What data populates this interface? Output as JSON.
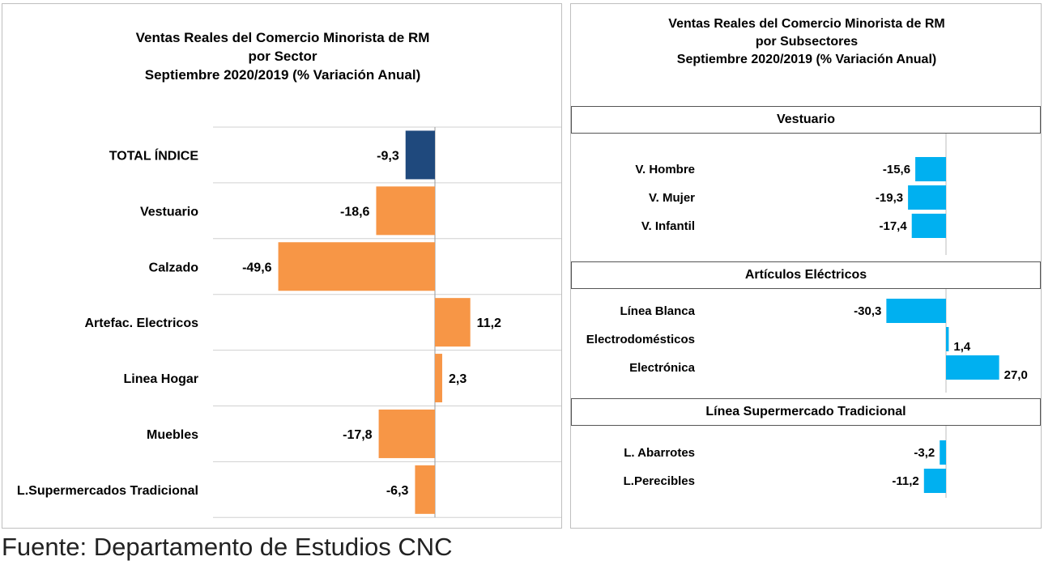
{
  "left_chart": {
    "title_lines": [
      "Ventas Reales del Comercio Minorista de RM",
      "por Sector",
      "Septiembre 2020/2019 (% Variación Anual)"
    ]
  },
  "right_chart": {
    "title_lines": [
      "Ventas Reales del Comercio Minorista de RM",
      "por Subsectores",
      "Septiembre 2020/2019 (% Variación Anual)"
    ]
  },
  "footer": "Fuente: Departamento de Estudios CNC",
  "colors": {
    "total": "#1f497d",
    "sector": "#f79646",
    "subsector": "#00b0f0"
  },
  "chart_data": [
    {
      "type": "bar",
      "orientation": "horizontal",
      "title": "Ventas Reales del Comercio Minorista de RM por Sector Septiembre 2020/2019 (% Variación Anual)",
      "categories": [
        "TOTAL ÍNDICE",
        "Vestuario",
        "Calzado",
        "Artefac. Electricos",
        "Linea Hogar",
        "Muebles",
        "L.Supermercados Tradicional"
      ],
      "values": [
        -9.3,
        -18.6,
        -49.6,
        11.2,
        2.3,
        -17.8,
        -6.3
      ],
      "labels": [
        "-9,3",
        "-18,6",
        "-49,6",
        "11,2",
        "2,3",
        "-17,8",
        "-6,3"
      ],
      "grid": true
    },
    {
      "type": "bar",
      "orientation": "horizontal",
      "title": "Ventas Reales del Comercio Minorista de RM por Subsectores Septiembre 2020/2019 (% Variación Anual)",
      "groups": [
        {
          "name": "Vestuario",
          "categories": [
            "V. Hombre",
            "V. Mujer",
            "V. Infantil"
          ],
          "values": [
            -15.6,
            -19.3,
            -17.4
          ],
          "labels": [
            "-15,6",
            "-19,3",
            "-17,4"
          ]
        },
        {
          "name": "Artículos Eléctricos",
          "categories": [
            "Línea Blanca",
            "Electrodomésticos",
            "Electrónica"
          ],
          "values": [
            -30.3,
            1.4,
            27.0
          ],
          "labels": [
            "-30,3",
            "1,4",
            "27,0"
          ]
        },
        {
          "name": "Línea Supermercado Tradicional",
          "categories": [
            "L. Abarrotes",
            "L.Perecibles"
          ],
          "values": [
            -3.2,
            -11.2
          ],
          "labels": [
            "-3,2",
            "-11,2"
          ]
        }
      ]
    }
  ]
}
